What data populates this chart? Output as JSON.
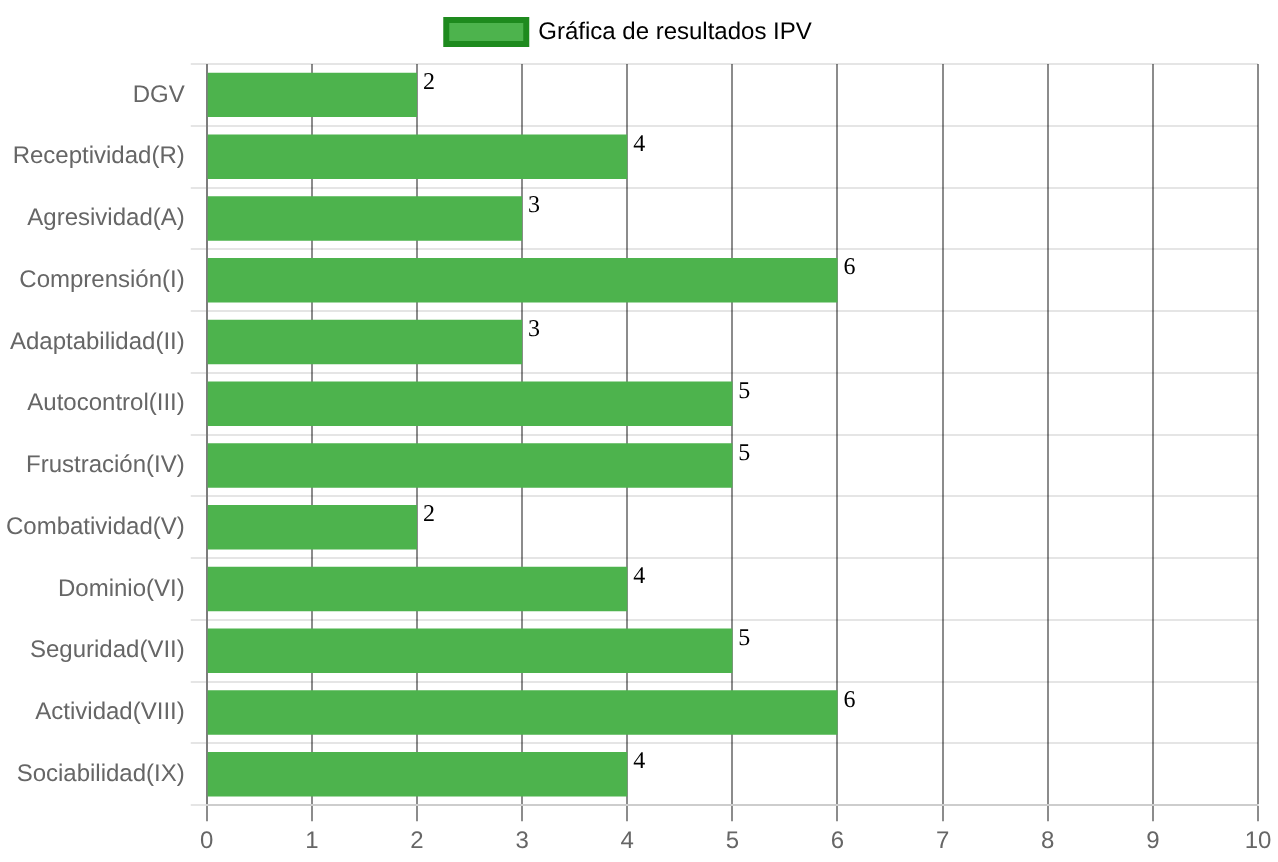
{
  "chart_data": {
    "type": "bar",
    "orientation": "horizontal",
    "categories": [
      "DGV",
      "Receptividad(R)",
      "Agresividad(A)",
      "Comprensión(I)",
      "Adaptabilidad(II)",
      "Autocontrol(III)",
      "Frustración(IV)",
      "Combatividad(V)",
      "Dominio(VI)",
      "Seguridad(VII)",
      "Actividad(VIII)",
      "Sociabilidad(IX)"
    ],
    "series": [
      {
        "name": "Gráfica de resultados IPV",
        "color": "#4db34d",
        "values": [
          2,
          4,
          3,
          6,
          3,
          5,
          5,
          2,
          4,
          5,
          6,
          4
        ]
      }
    ],
    "xlim": [
      0,
      10
    ],
    "xticks": [
      0,
      1,
      2,
      3,
      4,
      5,
      6,
      7,
      8,
      9,
      10
    ],
    "grid": true,
    "legend": "top",
    "data_labels": true
  }
}
